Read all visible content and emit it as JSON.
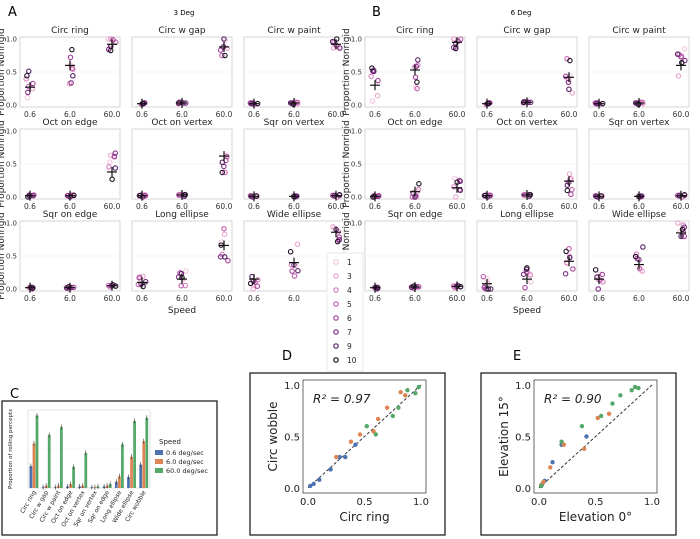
{
  "chart_data": {
    "type": "scatter",
    "panels": {
      "A": {
        "label": "A",
        "title": "3 Deg"
      },
      "B": {
        "label": "B",
        "title": "6 Deg"
      }
    },
    "axes": {
      "xlabel": "Speed",
      "ylabel": "Proportion Nonrigid",
      "x_ticks": [
        "0.6",
        "6.0",
        "60.0"
      ],
      "y_ticks": [
        "0.0",
        "0.5",
        "1.0"
      ],
      "ylim": [
        0,
        1
      ]
    },
    "subplot_titles": [
      "Circ ring",
      "Circ w gap",
      "Circ w paint",
      "Oct on edge",
      "Oct on vertex",
      "Sqr on vertex",
      "Sqr on edge",
      "Long ellipse",
      "Wide ellipse"
    ],
    "observer_legend": {
      "labels": [
        "1",
        "3",
        "4",
        "5",
        "6",
        "7",
        "9",
        "10"
      ],
      "colors": [
        "#f2c6dc",
        "#e8a5cd",
        "#d97fbe",
        "#c35daf",
        "#a54199",
        "#7f2d84",
        "#572066",
        "#1c1024"
      ]
    },
    "means": {
      "A": [
        [
          0.27,
          0.6,
          0.92
        ],
        [
          0.02,
          0.03,
          0.88
        ],
        [
          0.02,
          0.03,
          0.92
        ],
        [
          0.02,
          0.02,
          0.38
        ],
        [
          0.02,
          0.03,
          0.62
        ],
        [
          0.01,
          0.01,
          0.02
        ],
        [
          0.02,
          0.02,
          0.05
        ],
        [
          0.1,
          0.15,
          0.66
        ],
        [
          0.15,
          0.4,
          0.86
        ]
      ],
      "B": [
        [
          0.3,
          0.53,
          0.95
        ],
        [
          0.02,
          0.04,
          0.42
        ],
        [
          0.02,
          0.03,
          0.6
        ],
        [
          0.01,
          0.08,
          0.14
        ],
        [
          0.02,
          0.03,
          0.24
        ],
        [
          0.01,
          0.01,
          0.02
        ],
        [
          0.02,
          0.03,
          0.04
        ],
        [
          0.08,
          0.15,
          0.42
        ],
        [
          0.15,
          0.37,
          0.85
        ]
      ]
    },
    "bar_chart": {
      "label": "C",
      "type": "bar",
      "ylabel": "Proportion of rolling percepts",
      "categories": [
        "Circ ring",
        "Circ w gap",
        "Circ w paint",
        "Oct on edge",
        "Oct on vertex",
        "Sqr on vertex",
        "Sqr on edge",
        "Long ellipse",
        "Wide ellipse",
        "Circ wobble"
      ],
      "legend_title": "Speed",
      "series": [
        {
          "name": "0.6 deg/sec",
          "color": "#4c72b0",
          "values": [
            0.28,
            0.01,
            0.01,
            0.02,
            0.02,
            0.01,
            0.02,
            0.08,
            0.14,
            0.3
          ]
        },
        {
          "name": "6.0 deg/sec",
          "color": "#dd8452",
          "values": [
            0.57,
            0.03,
            0.03,
            0.05,
            0.03,
            0.01,
            0.03,
            0.15,
            0.4,
            0.6
          ]
        },
        {
          "name": "60.0 deg/sec",
          "color": "#55a868",
          "values": [
            0.93,
            0.68,
            0.78,
            0.27,
            0.45,
            0.02,
            0.05,
            0.56,
            0.86,
            0.9
          ]
        }
      ],
      "ylim": [
        0,
        1
      ]
    },
    "scatter_D": {
      "label": "D",
      "type": "scatter",
      "xlabel": "Circ ring",
      "ylabel": "Circ wobble",
      "r2_text": "R² = 0.97",
      "ticks": [
        "0.0",
        "0.5",
        "1.0"
      ],
      "xlim": [
        0,
        1
      ],
      "ylim": [
        0,
        1
      ],
      "points": [
        {
          "x": 0.02,
          "y": 0.02,
          "c": "#4c72b0"
        },
        {
          "x": 0.05,
          "y": 0.04,
          "c": "#4c72b0"
        },
        {
          "x": 0.1,
          "y": 0.08,
          "c": "#4c72b0"
        },
        {
          "x": 0.2,
          "y": 0.18,
          "c": "#4c72b0"
        },
        {
          "x": 0.28,
          "y": 0.3,
          "c": "#4c72b0"
        },
        {
          "x": 0.33,
          "y": 0.3,
          "c": "#4c72b0"
        },
        {
          "x": 0.42,
          "y": 0.42,
          "c": "#4c72b0"
        },
        {
          "x": 0.25,
          "y": 0.3,
          "c": "#dd8452"
        },
        {
          "x": 0.38,
          "y": 0.45,
          "c": "#dd8452"
        },
        {
          "x": 0.46,
          "y": 0.52,
          "c": "#dd8452"
        },
        {
          "x": 0.58,
          "y": 0.55,
          "c": "#dd8452"
        },
        {
          "x": 0.62,
          "y": 0.67,
          "c": "#dd8452"
        },
        {
          "x": 0.7,
          "y": 0.78,
          "c": "#dd8452"
        },
        {
          "x": 0.82,
          "y": 0.93,
          "c": "#dd8452"
        },
        {
          "x": 0.86,
          "y": 0.9,
          "c": "#dd8452"
        },
        {
          "x": 0.52,
          "y": 0.6,
          "c": "#55a868"
        },
        {
          "x": 0.6,
          "y": 0.52,
          "c": "#55a868"
        },
        {
          "x": 0.75,
          "y": 0.7,
          "c": "#55a868"
        },
        {
          "x": 0.8,
          "y": 0.78,
          "c": "#55a868"
        },
        {
          "x": 0.88,
          "y": 0.95,
          "c": "#55a868"
        },
        {
          "x": 0.95,
          "y": 0.92,
          "c": "#55a868"
        },
        {
          "x": 0.98,
          "y": 0.98,
          "c": "#55a868"
        }
      ]
    },
    "scatter_E": {
      "label": "E",
      "type": "scatter",
      "xlabel": "Elevation 0°",
      "ylabel": "Elevation 15°",
      "r2_text": "R² = 0.90",
      "ticks": [
        "0.0",
        "0.5",
        "1.0"
      ],
      "xlim": [
        0,
        1
      ],
      "ylim": [
        0,
        1
      ],
      "points": [
        {
          "x": 0.02,
          "y": 0.02,
          "c": "#4c72b0"
        },
        {
          "x": 0.03,
          "y": 0.04,
          "c": "#4c72b0"
        },
        {
          "x": 0.05,
          "y": 0.07,
          "c": "#4c72b0"
        },
        {
          "x": 0.12,
          "y": 0.25,
          "c": "#4c72b0"
        },
        {
          "x": 0.2,
          "y": 0.42,
          "c": "#4c72b0"
        },
        {
          "x": 0.42,
          "y": 0.5,
          "c": "#4c72b0"
        },
        {
          "x": 0.02,
          "y": 0.03,
          "c": "#dd8452"
        },
        {
          "x": 0.04,
          "y": 0.06,
          "c": "#dd8452"
        },
        {
          "x": 0.1,
          "y": 0.2,
          "c": "#dd8452"
        },
        {
          "x": 0.22,
          "y": 0.42,
          "c": "#dd8452"
        },
        {
          "x": 0.4,
          "y": 0.38,
          "c": "#dd8452"
        },
        {
          "x": 0.52,
          "y": 0.68,
          "c": "#dd8452"
        },
        {
          "x": 0.62,
          "y": 0.72,
          "c": "#dd8452"
        },
        {
          "x": 0.02,
          "y": 0.02,
          "c": "#55a868"
        },
        {
          "x": 0.2,
          "y": 0.45,
          "c": "#55a868"
        },
        {
          "x": 0.38,
          "y": 0.6,
          "c": "#55a868"
        },
        {
          "x": 0.55,
          "y": 0.7,
          "c": "#55a868"
        },
        {
          "x": 0.65,
          "y": 0.82,
          "c": "#55a868"
        },
        {
          "x": 0.72,
          "y": 0.9,
          "c": "#55a868"
        },
        {
          "x": 0.82,
          "y": 0.95,
          "c": "#55a868"
        },
        {
          "x": 0.85,
          "y": 0.98,
          "c": "#55a868"
        },
        {
          "x": 0.88,
          "y": 0.97,
          "c": "#55a868"
        }
      ]
    }
  }
}
